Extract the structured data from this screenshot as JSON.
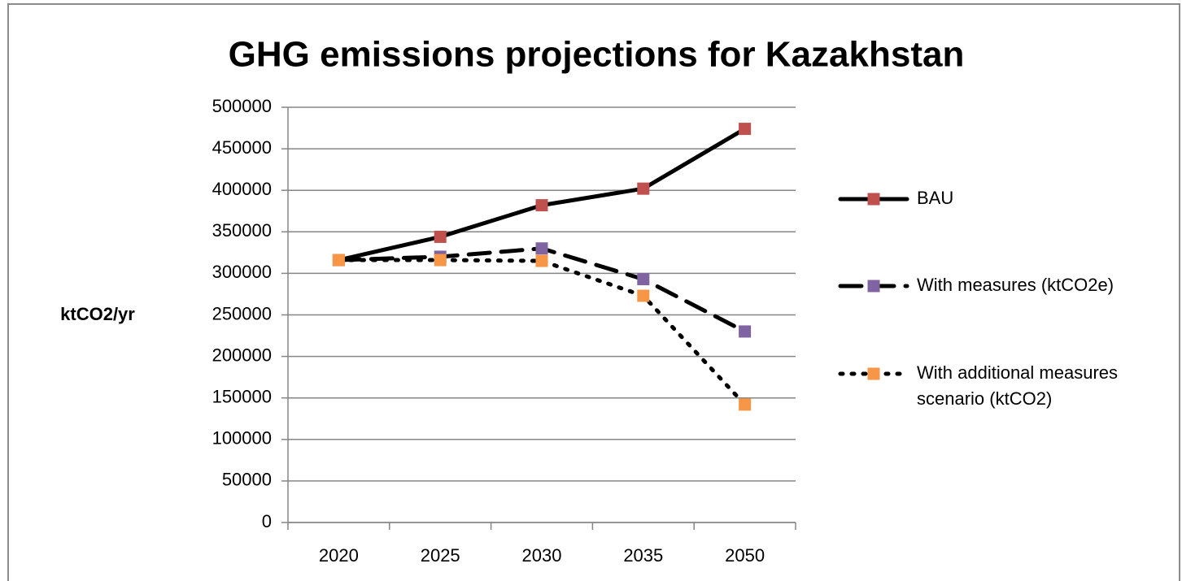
{
  "chart_data": {
    "type": "line",
    "title": "GHG emissions projections for Kazakhstan",
    "y_label": "ktCO2/yr",
    "categories": [
      "2020",
      "2025",
      "2030",
      "2035",
      "2050"
    ],
    "series": [
      {
        "name": "BAU",
        "color": "#000000",
        "marker_color": "#c0504d",
        "line_style": "solid",
        "values": [
          316000,
          344000,
          382000,
          402000,
          474000
        ]
      },
      {
        "name": "With measures (ktCO2e)",
        "color": "#000000",
        "marker_color": "#8064a2",
        "line_style": "dashed",
        "values": [
          316000,
          320000,
          330000,
          293000,
          230000
        ]
      },
      {
        "name": "With additional measures scenario (ktCO2)",
        "color": "#000000",
        "marker_color": "#f79646",
        "line_style": "dotted",
        "values": [
          316000,
          316000,
          315000,
          273000,
          142000
        ]
      }
    ],
    "ylim": [
      0,
      500000
    ],
    "yticks": [
      0,
      50000,
      100000,
      150000,
      200000,
      250000,
      300000,
      350000,
      400000,
      450000,
      500000
    ],
    "grid": true,
    "legend": "right"
  }
}
